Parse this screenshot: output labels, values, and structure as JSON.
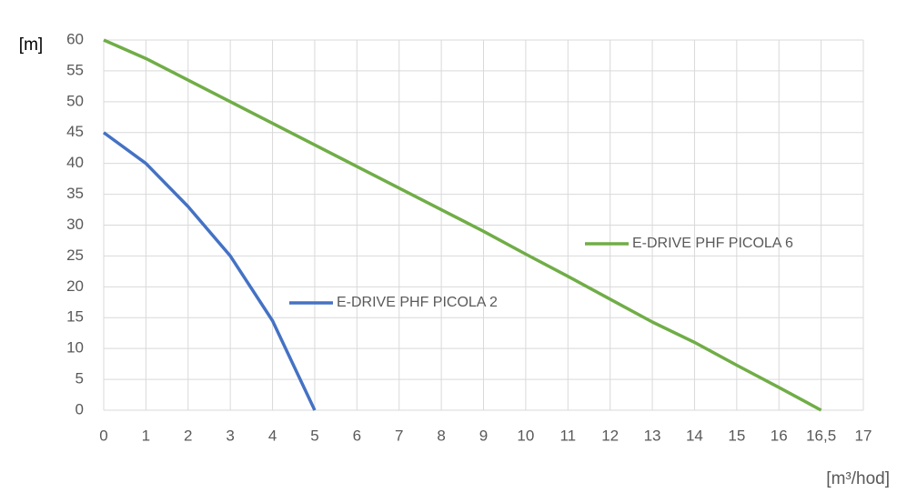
{
  "chart_data": {
    "type": "line",
    "y_label": "[m]",
    "x_label": "[m³/hod]",
    "categories": [
      "0",
      "1",
      "2",
      "3",
      "4",
      "5",
      "6",
      "7",
      "8",
      "9",
      "10",
      "11",
      "12",
      "13",
      "14",
      "15",
      "16",
      "16,5",
      "17"
    ],
    "series": [
      {
        "name": "E-DRIVE PHF PICOLA 2",
        "color": "#4472c4",
        "values": [
          45,
          40,
          33,
          25,
          14.5,
          0,
          null,
          null,
          null,
          null,
          null,
          null,
          null,
          null,
          null,
          null,
          null,
          null,
          null
        ]
      },
      {
        "name": "E-DRIVE PHF PICOLA 6",
        "color": "#70ad47",
        "values": [
          60,
          57,
          53.5,
          50,
          46.5,
          43,
          39.5,
          36,
          32.5,
          29,
          25.3,
          21.7,
          18,
          14.3,
          11,
          7.3,
          3.7,
          0,
          null
        ]
      }
    ],
    "ylim": [
      0,
      60
    ],
    "yticks": [
      0,
      5,
      10,
      15,
      20,
      25,
      30,
      35,
      40,
      45,
      50,
      55,
      60
    ],
    "grid": true
  }
}
